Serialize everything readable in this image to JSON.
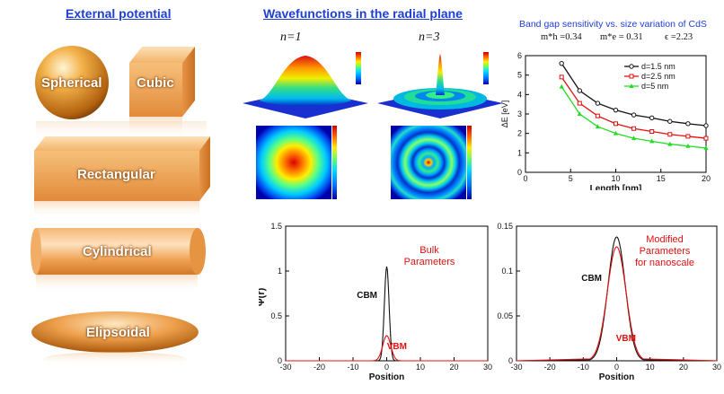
{
  "left_panel": {
    "title": "External potential",
    "shapes": [
      "Spherical",
      "Cubic",
      "Rectangular",
      "Cylindrical",
      "Elipsoidal"
    ]
  },
  "middle_panel": {
    "title": "Wavefunctions in the radial plane",
    "panels": [
      {
        "label": "n=1"
      },
      {
        "label": "n=3"
      }
    ]
  },
  "band_gap_chart": {
    "title": "Band gap sensitivity vs. size variation of CdS",
    "params": {
      "mh": "m*h =0.34",
      "me": "m*e = 0.31",
      "eps": "ϵ =2.23"
    }
  },
  "chart_data": [
    {
      "type": "line",
      "title": "Band gap sensitivity vs. size variation of CdS",
      "xlabel": "Length [nm]",
      "ylabel": "ΔE [eV]",
      "xlim": [
        0,
        20
      ],
      "ylim": [
        0,
        6
      ],
      "xticks": [
        0,
        5,
        10,
        15,
        20
      ],
      "yticks": [
        0,
        1,
        2,
        3,
        4,
        5,
        6
      ],
      "x": [
        4,
        6,
        8,
        10,
        12,
        14,
        16,
        18,
        20
      ],
      "series": [
        {
          "name": "d=1.5 nm",
          "color": "#111111",
          "marker": "circle",
          "values": [
            5.6,
            4.2,
            3.55,
            3.2,
            2.95,
            2.8,
            2.62,
            2.5,
            2.4
          ]
        },
        {
          "name": "d=2.5 nm",
          "color": "#e01010",
          "marker": "square",
          "values": [
            4.9,
            3.55,
            2.9,
            2.5,
            2.25,
            2.1,
            1.95,
            1.85,
            1.75
          ]
        },
        {
          "name": "d=5 nm",
          "color": "#22dd22",
          "marker": "triangle",
          "values": [
            4.4,
            3.0,
            2.35,
            2.0,
            1.75,
            1.6,
            1.45,
            1.35,
            1.25
          ]
        }
      ],
      "legend": "top-right",
      "grid": false
    },
    {
      "type": "line",
      "xlabel": "Position",
      "ylabel": "Ψ(r)",
      "xlim": [
        -30,
        30
      ],
      "ylim": [
        0,
        1.5
      ],
      "xticks": [
        -30,
        -20,
        -10,
        0,
        10,
        20,
        30
      ],
      "yticks": [
        0,
        0.5,
        1,
        1.5
      ],
      "annotation": "Bulk\nParameters",
      "series": [
        {
          "name": "CBM",
          "color": "#111111",
          "peak": 1.05,
          "width": 0.7
        },
        {
          "name": "VBM",
          "color": "#e01010",
          "peak": 0.28,
          "width": 1.2
        }
      ]
    },
    {
      "type": "line",
      "xlabel": "Position",
      "xlim": [
        -30,
        30
      ],
      "ylim": [
        0,
        0.15
      ],
      "xticks": [
        -30,
        -20,
        -10,
        0,
        10,
        20,
        30
      ],
      "yticks": [
        0,
        0.05,
        0.1,
        0.15
      ],
      "annotation": "Modified\nParameters\nfor nanoscale",
      "series": [
        {
          "name": "CBM",
          "color": "#111111",
          "peak": 0.138,
          "width": 2.6
        },
        {
          "name": "VBM",
          "color": "#e01010",
          "peak": 0.127,
          "width": 2.8
        }
      ]
    }
  ]
}
